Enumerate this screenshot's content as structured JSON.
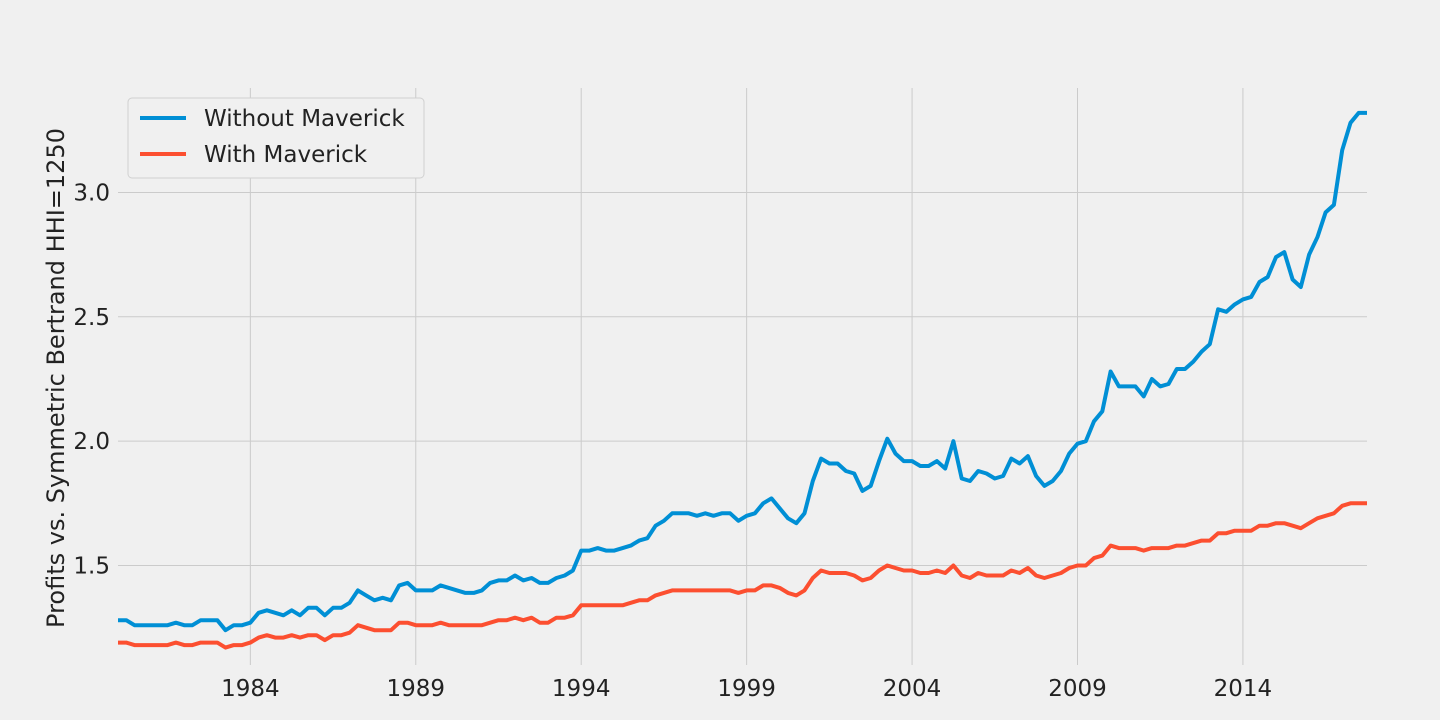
{
  "chart_data": {
    "type": "line",
    "title": "",
    "xlabel": "",
    "ylabel": "Profits vs. Symmetric Bertrand HHI=1250",
    "xlim": [
      1980.0,
      2017.75
    ],
    "ylim": [
      1.1,
      3.42
    ],
    "x_ticks": [
      1984,
      1989,
      1994,
      1999,
      2004,
      2009,
      2014
    ],
    "x_tick_labels": [
      "1984",
      "1989",
      "1994",
      "1999",
      "2004",
      "2009",
      "2014"
    ],
    "y_ticks": [
      1.5,
      2.0,
      2.5,
      3.0
    ],
    "y_tick_labels": [
      "1.5",
      "2.0",
      "2.5",
      "3.0"
    ],
    "grid": true,
    "legend_position": "top-left",
    "x_start": 1980.0,
    "x_step": 0.25,
    "series": [
      {
        "name": "Without Maverick",
        "color": "#008fd5",
        "values": [
          1.28,
          1.28,
          1.26,
          1.26,
          1.26,
          1.26,
          1.26,
          1.27,
          1.26,
          1.26,
          1.28,
          1.28,
          1.28,
          1.24,
          1.26,
          1.26,
          1.27,
          1.31,
          1.32,
          1.31,
          1.3,
          1.32,
          1.3,
          1.33,
          1.33,
          1.3,
          1.33,
          1.33,
          1.35,
          1.4,
          1.38,
          1.36,
          1.37,
          1.36,
          1.42,
          1.43,
          1.4,
          1.4,
          1.4,
          1.42,
          1.41,
          1.4,
          1.39,
          1.39,
          1.4,
          1.43,
          1.44,
          1.44,
          1.46,
          1.44,
          1.45,
          1.43,
          1.43,
          1.45,
          1.46,
          1.48,
          1.56,
          1.56,
          1.57,
          1.56,
          1.56,
          1.57,
          1.58,
          1.6,
          1.61,
          1.66,
          1.68,
          1.71,
          1.71,
          1.71,
          1.7,
          1.71,
          1.7,
          1.71,
          1.71,
          1.68,
          1.7,
          1.71,
          1.75,
          1.77,
          1.73,
          1.69,
          1.67,
          1.71,
          1.84,
          1.93,
          1.91,
          1.91,
          1.88,
          1.87,
          1.8,
          1.82,
          1.92,
          2.01,
          1.95,
          1.92,
          1.92,
          1.9,
          1.9,
          1.92,
          1.89,
          2.0,
          1.85,
          1.84,
          1.88,
          1.87,
          1.85,
          1.86,
          1.93,
          1.91,
          1.94,
          1.86,
          1.82,
          1.84,
          1.88,
          1.95,
          1.99,
          2.0,
          2.08,
          2.12,
          2.28,
          2.22,
          2.22,
          2.22,
          2.18,
          2.25,
          2.22,
          2.23,
          2.29,
          2.29,
          2.32,
          2.36,
          2.39,
          2.53,
          2.52,
          2.55,
          2.57,
          2.58,
          2.64,
          2.66,
          2.74,
          2.76,
          2.65,
          2.62,
          2.75,
          2.82,
          2.92,
          2.95,
          3.17,
          3.28,
          3.32,
          3.32
        ]
      },
      {
        "name": "With Maverick",
        "color": "#fc4f30",
        "values": [
          1.19,
          1.19,
          1.18,
          1.18,
          1.18,
          1.18,
          1.18,
          1.19,
          1.18,
          1.18,
          1.19,
          1.19,
          1.19,
          1.17,
          1.18,
          1.18,
          1.19,
          1.21,
          1.22,
          1.21,
          1.21,
          1.22,
          1.21,
          1.22,
          1.22,
          1.2,
          1.22,
          1.22,
          1.23,
          1.26,
          1.25,
          1.24,
          1.24,
          1.24,
          1.27,
          1.27,
          1.26,
          1.26,
          1.26,
          1.27,
          1.26,
          1.26,
          1.26,
          1.26,
          1.26,
          1.27,
          1.28,
          1.28,
          1.29,
          1.28,
          1.29,
          1.27,
          1.27,
          1.29,
          1.29,
          1.3,
          1.34,
          1.34,
          1.34,
          1.34,
          1.34,
          1.34,
          1.35,
          1.36,
          1.36,
          1.38,
          1.39,
          1.4,
          1.4,
          1.4,
          1.4,
          1.4,
          1.4,
          1.4,
          1.4,
          1.39,
          1.4,
          1.4,
          1.42,
          1.42,
          1.41,
          1.39,
          1.38,
          1.4,
          1.45,
          1.48,
          1.47,
          1.47,
          1.47,
          1.46,
          1.44,
          1.45,
          1.48,
          1.5,
          1.49,
          1.48,
          1.48,
          1.47,
          1.47,
          1.48,
          1.47,
          1.5,
          1.46,
          1.45,
          1.47,
          1.46,
          1.46,
          1.46,
          1.48,
          1.47,
          1.49,
          1.46,
          1.45,
          1.46,
          1.47,
          1.49,
          1.5,
          1.5,
          1.53,
          1.54,
          1.58,
          1.57,
          1.57,
          1.57,
          1.56,
          1.57,
          1.57,
          1.57,
          1.58,
          1.58,
          1.59,
          1.6,
          1.6,
          1.63,
          1.63,
          1.64,
          1.64,
          1.64,
          1.66,
          1.66,
          1.67,
          1.67,
          1.66,
          1.65,
          1.67,
          1.69,
          1.7,
          1.71,
          1.74,
          1.75,
          1.75,
          1.75
        ]
      }
    ]
  }
}
